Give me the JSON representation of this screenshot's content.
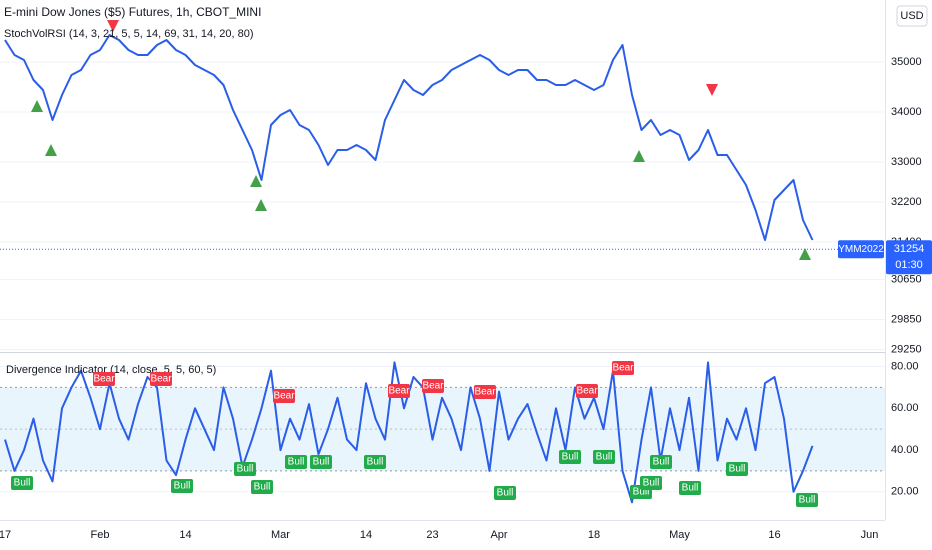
{
  "chart_data": [
    {
      "type": "line",
      "title": "E-mini Dow Jones ($5) Futures, 1h, CBOT_MINI",
      "subtitle": "StochVolRSI (14, 3, 21, 5, 5, 14, 69, 31, 14, 20, 80)",
      "currency": "USD",
      "symbol": "YMM2022",
      "last_price": 31254,
      "countdown": "01:30",
      "color": "#2a5ee8",
      "categories": [
        "17",
        null,
        null,
        null,
        null,
        null,
        null,
        null,
        null,
        null,
        "Feb",
        null,
        null,
        null,
        null,
        null,
        null,
        null,
        null,
        "14",
        null,
        null,
        null,
        null,
        null,
        null,
        null,
        null,
        null,
        "Mar",
        null,
        null,
        null,
        null,
        null,
        null,
        null,
        null,
        "14",
        null,
        null,
        null,
        null,
        null,
        null,
        "23",
        null,
        null,
        null,
        null,
        null,
        null,
        "Apr",
        null,
        null,
        null,
        null,
        null,
        null,
        null,
        null,
        null,
        "18",
        null,
        null,
        null,
        null,
        null,
        null,
        null,
        null,
        "May",
        null,
        null,
        null,
        null,
        null,
        null,
        null,
        null,
        null,
        "16",
        null,
        null,
        null,
        null,
        null,
        null,
        null,
        null,
        null,
        "Jun"
      ],
      "values": [
        35440,
        35140,
        35040,
        34640,
        34440,
        33840,
        34340,
        34740,
        34840,
        35140,
        35240,
        35540,
        35440,
        35240,
        35140,
        35140,
        35340,
        35440,
        35240,
        35140,
        34940,
        34840,
        34740,
        34540,
        34040,
        33640,
        33240,
        32640,
        33740,
        33940,
        34040,
        33740,
        33640,
        33340,
        32940,
        33240,
        33240,
        33340,
        33240,
        33040,
        33840,
        34240,
        34640,
        34440,
        34340,
        34540,
        34640,
        34840,
        34940,
        35040,
        35140,
        35040,
        34840,
        34740,
        34840,
        34840,
        34640,
        34640,
        34540,
        34540,
        34640,
        34540,
        34440,
        34540,
        35040,
        35340,
        34340,
        33640,
        33840,
        33540,
        33640,
        33540,
        33040,
        33240,
        33640,
        33140,
        33140,
        32840,
        32540,
        32040,
        31440,
        32240,
        32440,
        32640,
        31840,
        31440,
        null,
        null,
        null,
        null,
        null,
        null
      ],
      "ylim": [
        29200,
        36240
      ],
      "yticks": [
        29250,
        29850,
        30650,
        31400,
        32200,
        33000,
        34000,
        35000
      ]
    },
    {
      "type": "line",
      "title": "Divergence Indicator (14, close, 5, 5, 60, 5)",
      "color": "#2a5ee8",
      "values": [
        45,
        30,
        40,
        55,
        35,
        25,
        60,
        70,
        78,
        65,
        50,
        72,
        55,
        45,
        62,
        75,
        70,
        35,
        28,
        45,
        60,
        50,
        40,
        70,
        55,
        32,
        45,
        60,
        78,
        40,
        55,
        45,
        62,
        38,
        50,
        65,
        45,
        40,
        72,
        55,
        45,
        82,
        60,
        75,
        70,
        45,
        65,
        55,
        40,
        70,
        55,
        30,
        68,
        45,
        55,
        62,
        48,
        35,
        60,
        40,
        70,
        55,
        65,
        50,
        78,
        30,
        15,
        45,
        70,
        35,
        60,
        40,
        65,
        30,
        82,
        35,
        55,
        45,
        60,
        40,
        72,
        75,
        55,
        20,
        30,
        42,
        null,
        null,
        null,
        null,
        null,
        null
      ],
      "ylim": [
        6.5,
        86
      ],
      "yticks": [
        {
          "value": 20,
          "label": "20.00"
        },
        {
          "value": 40,
          "label": "40.00"
        },
        {
          "value": 60,
          "label": "60.00"
        },
        {
          "value": 80,
          "label": "80.00"
        }
      ],
      "band": [
        30,
        70
      ],
      "midline": 50,
      "annotations": [
        "Bear",
        "Bear",
        "Bear",
        "Bear",
        "Bear",
        "Bear",
        "Bear",
        "Bear",
        "Bull",
        "Bull",
        "Bull",
        "Bull",
        "Bull",
        "Bull",
        "Bull",
        "Bull",
        "Bull",
        "Bull",
        "Bull",
        "Bull",
        "Bull",
        "Bull",
        "Bull",
        "Bull"
      ]
    }
  ]
}
